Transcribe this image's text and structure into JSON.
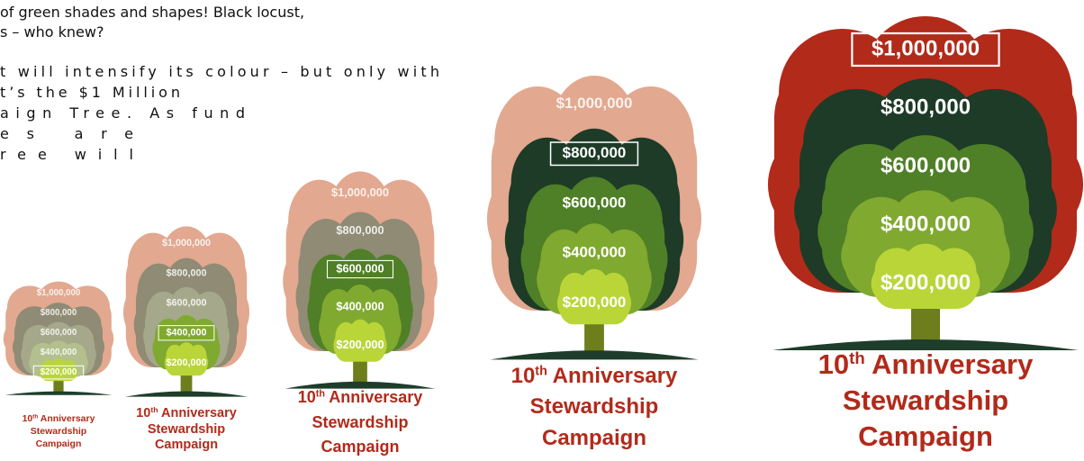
{
  "text": {
    "lines": [
      "of green shades and shapes! Black locust,",
      "s – who knew?",
      "t will intensify its colour – but only with",
      "t’s the $1 Million",
      "aign Tree.   As fund",
      "es are",
      "ree will"
    ]
  },
  "levels": [
    "$1,000,000",
    "$800,000",
    "$600,000",
    "$400,000",
    "$200,000"
  ],
  "caption": {
    "num": "10",
    "sup": "th",
    "rest": " Anniversary",
    "line2": "Stewardship",
    "line3": "Campaign"
  },
  "trees": [
    {
      "highlight": 4
    },
    {
      "highlight": 3
    },
    {
      "highlight": 2
    },
    {
      "highlight": 1
    },
    {
      "highlight": 0
    }
  ]
}
